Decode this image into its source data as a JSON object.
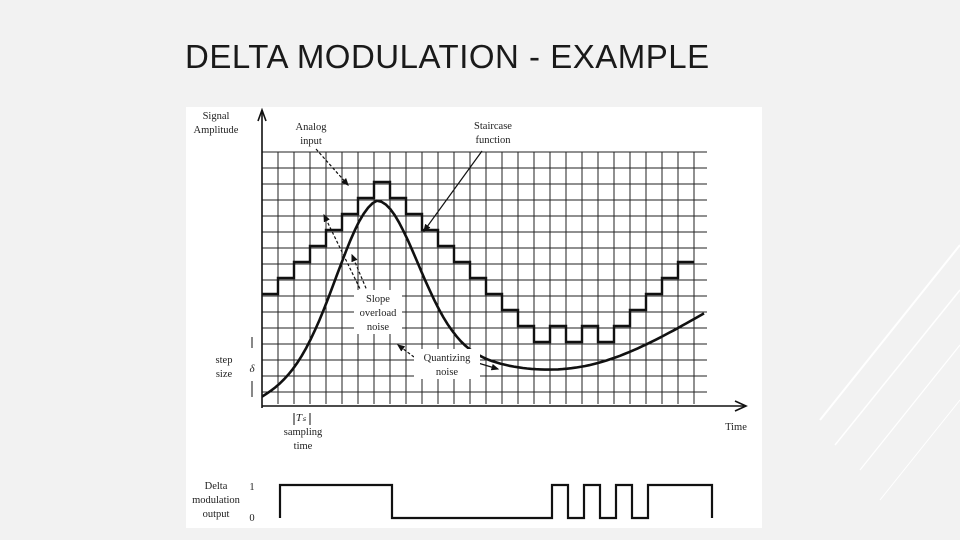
{
  "slide": {
    "title": "DELTA MODULATION - EXAMPLE"
  },
  "diagram": {
    "y_axis_label": [
      "Signal",
      "Amplitude"
    ],
    "x_axis_label": "Time",
    "annotations": {
      "analog_input": [
        "Analog",
        "input"
      ],
      "staircase_function": [
        "Staircase",
        "function"
      ],
      "slope_overload_noise": [
        "Slope",
        "overload",
        "noise"
      ],
      "quantizing_noise": [
        "Quantizing",
        "noise"
      ],
      "step_size": [
        "step",
        "size"
      ],
      "delta_symbol": "δ",
      "ts_symbol": "Tₛ",
      "sampling_time": [
        "sampling",
        "time"
      ]
    },
    "output": {
      "label": [
        "Delta",
        "modulation",
        "output"
      ],
      "level_high": "1",
      "level_low": "0",
      "bits": [
        1,
        1,
        1,
        1,
        1,
        1,
        1,
        0,
        0,
        0,
        0,
        0,
        0,
        0,
        0,
        0,
        0,
        1,
        0,
        1,
        0,
        1,
        0,
        1,
        1,
        1,
        1
      ]
    },
    "staircase_levels": [
      1,
      2,
      3,
      4,
      5,
      6,
      7,
      8,
      7,
      6,
      5,
      4,
      3,
      2,
      1,
      0,
      -1,
      -2,
      -1,
      -2,
      -1,
      -2,
      -1,
      0,
      1,
      2,
      3
    ]
  },
  "colors": {
    "background": "#f2f2f2",
    "figure_bg": "#ffffff",
    "ink": "#111111",
    "grid": "#222222"
  }
}
